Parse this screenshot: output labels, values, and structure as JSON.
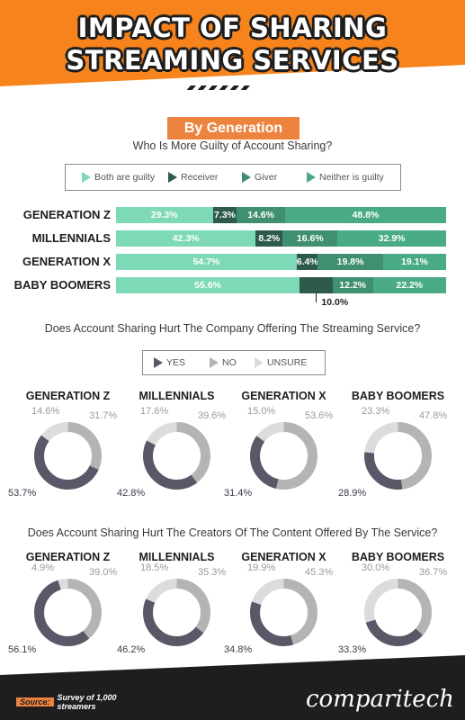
{
  "header": {
    "title_line1": "IMPACT OF SHARING",
    "title_line2": "STREAMING SERVICES",
    "colors": {
      "orange": "#f7831c",
      "dark": "#1e1e1e"
    }
  },
  "badge": "By Generation",
  "colors": {
    "both_guilty": "#7ed9b6",
    "receiver": "#2e5a4c",
    "giver": "#3f8f70",
    "neither": "#49ab86",
    "yes": "#585868",
    "no": "#b4b4b4",
    "unsure": "#dcdcdc",
    "accent": "#ec8440"
  },
  "chart_data": [
    {
      "type": "bar",
      "stacked": true,
      "orientation": "horizontal",
      "title": "Who Is More Guilty of Account Sharing?",
      "categories": [
        "GENERATION Z",
        "MILLENNIALS",
        "GENERATION X",
        "BABY BOOMERS"
      ],
      "series": [
        {
          "name": "Both are guilty",
          "values": [
            29.3,
            42.3,
            54.7,
            55.6
          ]
        },
        {
          "name": "Receiver",
          "values": [
            7.3,
            8.2,
            6.4,
            10.0
          ]
        },
        {
          "name": "Giver",
          "values": [
            14.6,
            16.6,
            19.8,
            12.2
          ]
        },
        {
          "name": "Neither is guilty",
          "values": [
            48.8,
            32.9,
            19.1,
            22.2
          ]
        }
      ],
      "value_labels": [
        [
          "29.3%",
          "7.3%",
          "14.6%",
          "48.8%"
        ],
        [
          "42.3%",
          "8.2%",
          "16.6%",
          "32.9%"
        ],
        [
          "54.7%",
          "6.4%",
          "19.8%",
          "19.1%"
        ],
        [
          "55.6%",
          "10.0%",
          "12.2%",
          "22.2%"
        ]
      ],
      "legend": "top"
    },
    {
      "type": "pie",
      "donut": true,
      "title": "Does Account Sharing Hurt The Company Offering The Streaming Service?",
      "legend_labels": [
        "YES",
        "NO",
        "UNSURE"
      ],
      "charts": [
        {
          "name": "GENERATION Z",
          "yes": 53.7,
          "no": 31.7,
          "unsure": 14.6,
          "labels": {
            "yes": "53.7%",
            "no": "31.7%",
            "unsure": "14.6%"
          }
        },
        {
          "name": "MILLENNIALS",
          "yes": 42.8,
          "no": 39.6,
          "unsure": 17.6,
          "labels": {
            "yes": "42.8%",
            "no": "39.6%",
            "unsure": "17.6%"
          }
        },
        {
          "name": "GENERATION X",
          "yes": 31.4,
          "no": 53.6,
          "unsure": 15.0,
          "labels": {
            "yes": "31.4%",
            "no": "53.6%",
            "unsure": "15.0%"
          }
        },
        {
          "name": "BABY BOOMERS",
          "yes": 28.9,
          "no": 47.8,
          "unsure": 23.3,
          "labels": {
            "yes": "28.9%",
            "no": "47.8%",
            "unsure": "23.3%"
          }
        }
      ]
    },
    {
      "type": "pie",
      "donut": true,
      "title": "Does Account Sharing Hurt The Creators Of The Content Offered By The Service?",
      "charts": [
        {
          "name": "GENERATION Z",
          "yes": 56.1,
          "no": 39.0,
          "unsure": 4.9,
          "labels": {
            "yes": "56.1%",
            "no": "39.0%",
            "unsure": "4.9%"
          }
        },
        {
          "name": "MILLENNIALS",
          "yes": 46.2,
          "no": 35.3,
          "unsure": 18.5,
          "labels": {
            "yes": "46.2%",
            "no": "35.3%",
            "unsure": "18.5%"
          }
        },
        {
          "name": "GENERATION X",
          "yes": 34.8,
          "no": 45.3,
          "unsure": 19.9,
          "labels": {
            "yes": "34.8%",
            "no": "45.3%",
            "unsure": "19.9%"
          }
        },
        {
          "name": "BABY BOOMERS",
          "yes": 33.3,
          "no": 36.7,
          "unsure": 30.0,
          "labels": {
            "yes": "33.3%",
            "no": "36.7%",
            "unsure": "30.0%"
          }
        }
      ]
    }
  ],
  "footer": {
    "source_tag": "Source:",
    "source_text": "Survey of 1,000 streamers",
    "brand": "comparitech"
  }
}
